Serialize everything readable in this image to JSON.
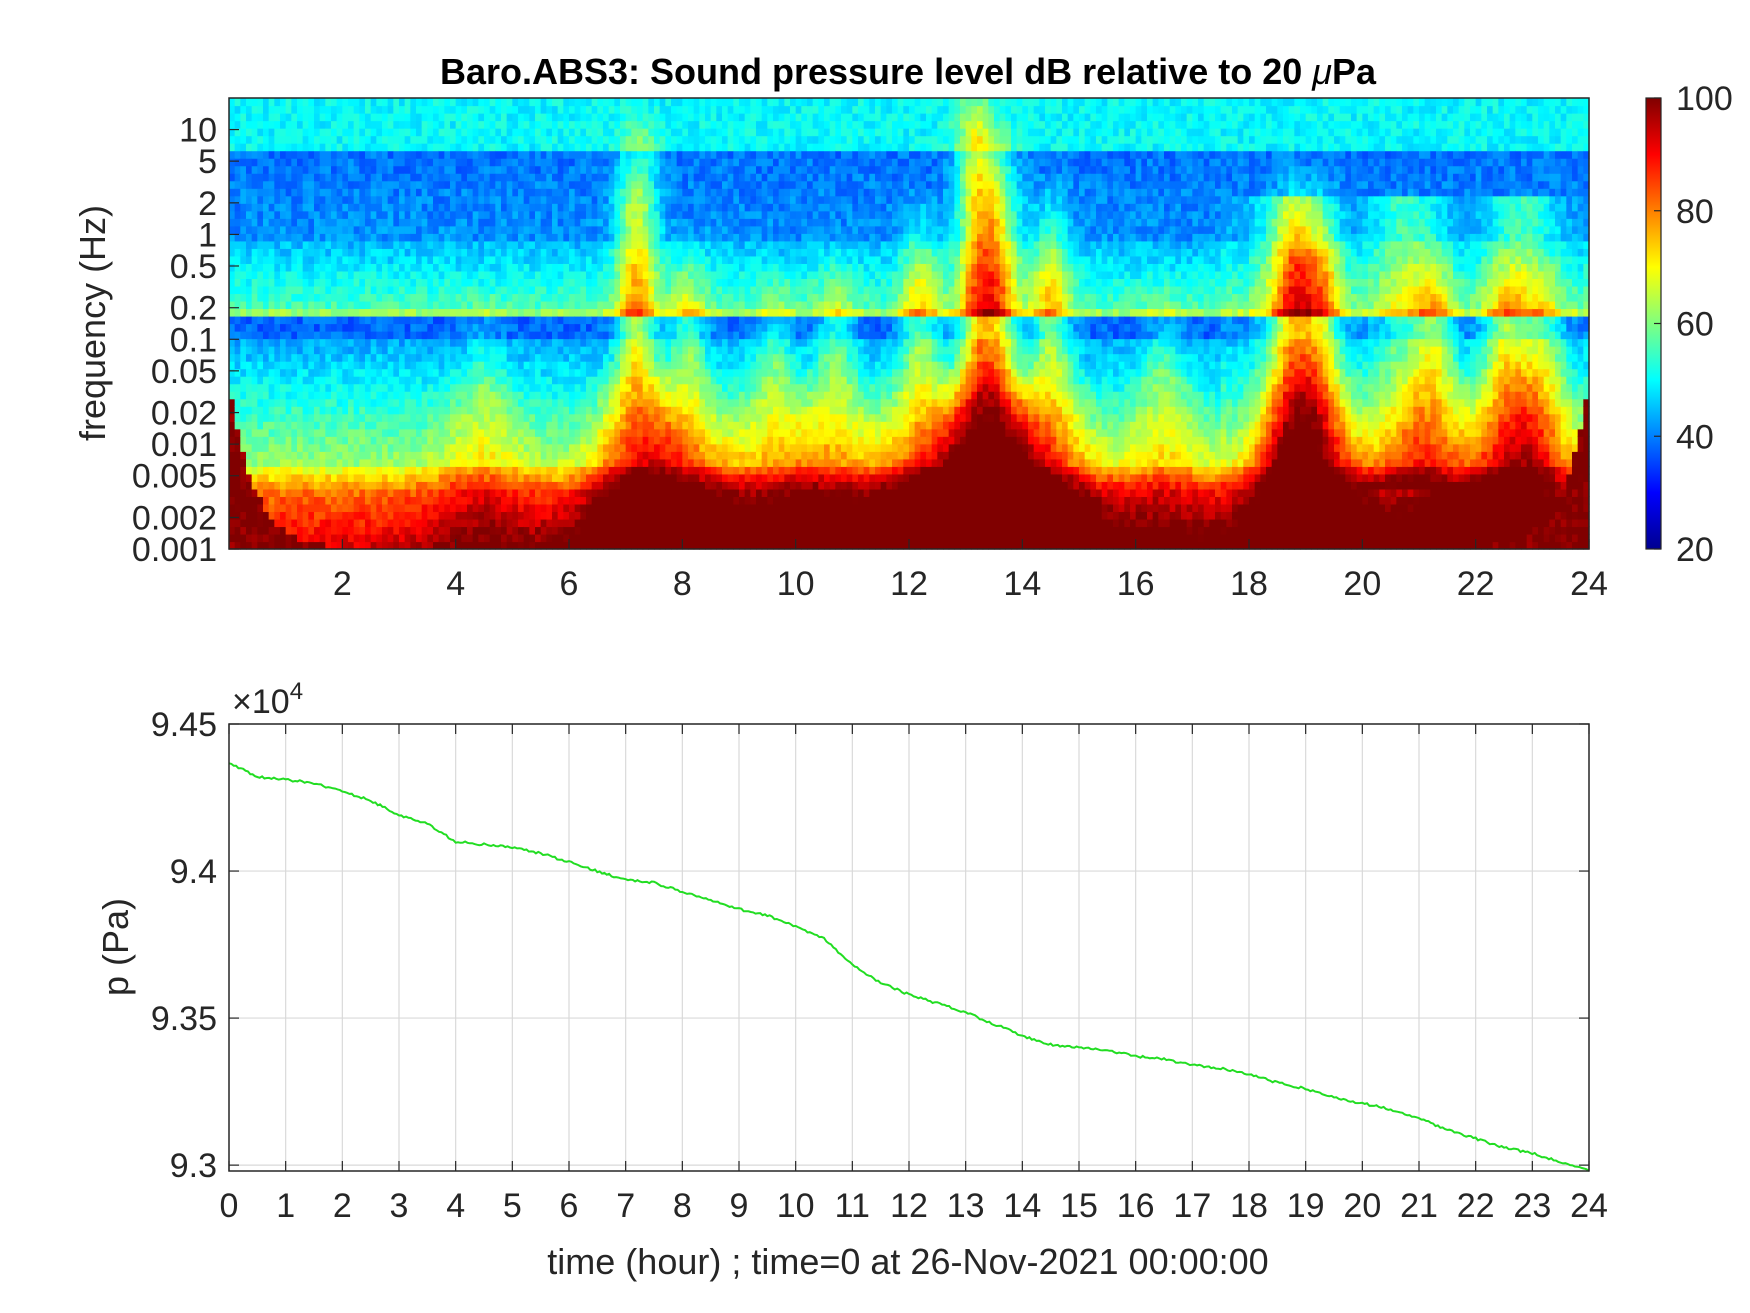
{
  "figure": {
    "title": "Baro.ABS3: Sound pressure level dB relative to 20 μPa",
    "title_prefix": "Baro.ABS3: Sound pressure level dB relative to 20 ",
    "title_mu": "μ",
    "title_suffix": "Pa"
  },
  "chart_data": [
    {
      "type": "heatmap",
      "title": "Baro.ABS3: Sound pressure level dB relative to 20 μPa",
      "xlabel": "",
      "ylabel": "frequency (Hz)",
      "x_ticks": [
        2,
        4,
        6,
        8,
        10,
        12,
        14,
        16,
        18,
        20,
        22,
        24
      ],
      "xlim": [
        0,
        24
      ],
      "y_scale": "log",
      "ylim": [
        0.001,
        20
      ],
      "y_ticks": [
        0.001,
        0.002,
        0.005,
        0.01,
        0.02,
        0.05,
        0.1,
        0.2,
        0.5,
        1,
        2,
        5,
        10
      ],
      "y_tick_labels": [
        "0.001",
        "0.002",
        "0.005",
        "0.01",
        "0.02",
        "0.05",
        "0.1",
        "0.2",
        "0.5",
        "1",
        "2",
        "5",
        "10"
      ],
      "colormap": "jet",
      "colorbar": {
        "min": 20,
        "max": 100,
        "ticks": [
          20,
          40,
          60,
          80,
          100
        ]
      },
      "events": [
        {
          "time": 4.5,
          "strength": 0.35
        },
        {
          "time": 7.2,
          "strength": 0.9
        },
        {
          "time": 8.1,
          "strength": 0.55
        },
        {
          "time": 9.6,
          "strength": 0.45
        },
        {
          "time": 10.7,
          "strength": 0.5
        },
        {
          "time": 12.2,
          "strength": 0.65
        },
        {
          "time": 13.2,
          "strength": 1.0
        },
        {
          "time": 13.6,
          "strength": 0.85
        },
        {
          "time": 14.5,
          "strength": 0.7
        },
        {
          "time": 16.5,
          "strength": 0.4
        },
        {
          "time": 18.8,
          "strength": 0.75
        },
        {
          "time": 19.3,
          "strength": 0.7
        },
        {
          "time": 21.3,
          "strength": 0.55
        },
        {
          "time": 22.5,
          "strength": 0.5
        },
        {
          "time": 23.2,
          "strength": 0.45
        }
      ]
    },
    {
      "type": "line",
      "xlabel": "time (hour) ; time=0 at 26-Nov-2021 00:00:00",
      "ylabel": "p (Pa)",
      "exponent_label": "×10",
      "exponent_power": "4",
      "xlim": [
        0,
        24
      ],
      "ylim": [
        9.298,
        9.45
      ],
      "x_ticks": [
        0,
        1,
        2,
        3,
        4,
        5,
        6,
        7,
        8,
        9,
        10,
        11,
        12,
        13,
        14,
        15,
        16,
        17,
        18,
        19,
        20,
        21,
        22,
        23,
        24
      ],
      "y_ticks": [
        9.3,
        9.35,
        9.4,
        9.45
      ],
      "y_tick_labels": [
        "9.3",
        "9.35",
        "9.4",
        "9.45"
      ],
      "grid": true,
      "line_color": "#22dd22",
      "series": [
        {
          "x": [
            0,
            0.5,
            1,
            1.5,
            2,
            2.5,
            3,
            3.5,
            4,
            4.5,
            5,
            5.5,
            6,
            6.5,
            7,
            7.5,
            8,
            8.5,
            9,
            9.5,
            10,
            10.5,
            11,
            11.5,
            12,
            12.5,
            13,
            13.5,
            14,
            14.5,
            15,
            15.5,
            16,
            16.5,
            17,
            17.5,
            18,
            18.5,
            19,
            19.5,
            20,
            20.5,
            21,
            21.5,
            22,
            22.5,
            23,
            23.5,
            24
          ],
          "y": [
            9.437,
            9.432,
            9.431,
            9.43,
            9.427,
            9.424,
            9.419,
            9.416,
            9.41,
            9.409,
            9.408,
            9.406,
            9.403,
            9.4,
            9.397,
            9.396,
            9.393,
            9.39,
            9.387,
            9.385,
            9.381,
            9.377,
            9.368,
            9.362,
            9.358,
            9.355,
            9.352,
            9.348,
            9.344,
            9.341,
            9.34,
            9.339,
            9.337,
            9.336,
            9.334,
            9.333,
            9.331,
            9.328,
            9.326,
            9.323,
            9.321,
            9.319,
            9.316,
            9.312,
            9.309,
            9.306,
            9.304,
            9.301,
            9.298
          ]
        }
      ]
    }
  ]
}
